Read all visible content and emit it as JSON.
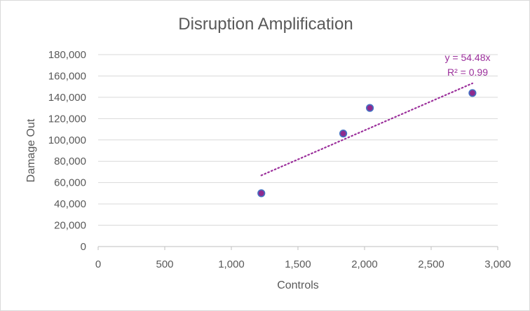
{
  "chart_data": {
    "type": "scatter",
    "title": "Disruption Amplification",
    "xlabel": "Controls",
    "ylabel": "Damage Out",
    "xlim": [
      0,
      3000
    ],
    "ylim": [
      0,
      180000
    ],
    "x_ticks": [
      0,
      500,
      1000,
      1500,
      2000,
      2500,
      3000
    ],
    "y_ticks": [
      0,
      20000,
      40000,
      60000,
      80000,
      100000,
      120000,
      140000,
      160000,
      180000
    ],
    "grid": "horizontal",
    "series": [
      {
        "x": [
          1225,
          1840,
          2040,
          2810
        ],
        "y": [
          50000,
          106000,
          130000,
          144000
        ],
        "marker_color": "#8e2a8e",
        "marker_edge_color": "#4472c4"
      }
    ],
    "trendline": {
      "type": "linear-through-origin",
      "slope": 54.48,
      "x_range": [
        1225,
        2810
      ],
      "color": "#9b2f9b",
      "equation_label": "y = 54.48x",
      "r2_label": "R² = 0.99"
    }
  }
}
